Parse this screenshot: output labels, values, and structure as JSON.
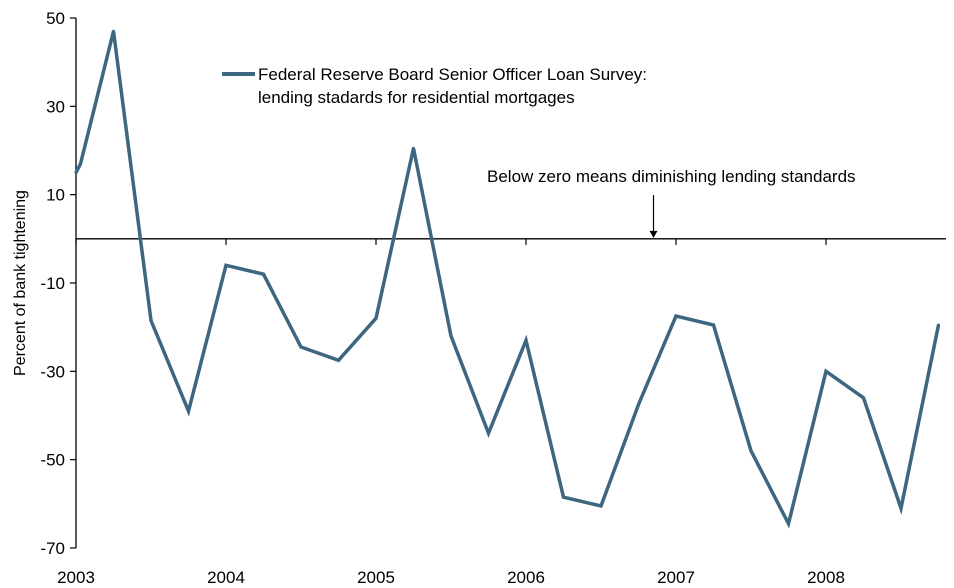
{
  "chart_data": {
    "type": "line",
    "ylabel": "Percent of bank tightening",
    "xlabel": "",
    "ylim": [
      -70,
      50
    ],
    "yticks": [
      50,
      30,
      10,
      -10,
      -30,
      -50,
      -70
    ],
    "xlim": [
      2003.0,
      2008.8
    ],
    "xticks": [
      2003,
      2004,
      2005,
      2006,
      2007,
      2008
    ],
    "grid": false,
    "legend_position": "top-center",
    "reference_line": 0,
    "series": [
      {
        "name": "Federal Reserve Board Senior Officer Loan Survey: lending stadards for residential mortgages",
        "color": "#3d6680",
        "x": [
          2003.0,
          2003.03,
          2003.25,
          2003.5,
          2003.75,
          2004.0,
          2004.25,
          2004.5,
          2004.75,
          2005.0,
          2005.25,
          2005.5,
          2005.75,
          2006.0,
          2006.25,
          2006.5,
          2006.75,
          2007.0,
          2007.25,
          2007.5,
          2007.75,
          2008.0,
          2008.25,
          2008.5,
          2008.75
        ],
        "y": [
          15,
          17,
          47,
          -18.5,
          -39,
          -6,
          -8,
          -24.5,
          -27.5,
          -18,
          20.5,
          -22,
          -44,
          -23,
          -58.5,
          -60.5,
          -37.5,
          -17.5,
          -19.5,
          -48,
          -64.5,
          -30,
          -36,
          -61,
          -19.5
        ]
      }
    ],
    "legend": {
      "line1": "Federal Reserve Board Senior Officer Loan Survey:",
      "line2": "lending stadards for residential mortgages"
    },
    "annotation": {
      "text": "Below zero means diminishing lending standards",
      "x": 2006.85,
      "y": 0
    }
  }
}
